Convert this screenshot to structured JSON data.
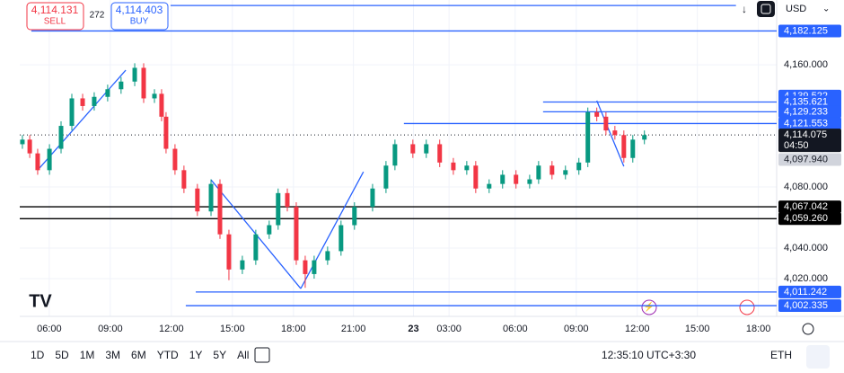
{
  "chart_data": {
    "type": "candlestick",
    "x": [
      0.13,
      0.49,
      0.88,
      1.46,
      2.03,
      2.56,
      3.09,
      3.66,
      4.32,
      4.98,
      5.65,
      6.09,
      6.62,
      6.97,
      7.19,
      7.63,
      8.07,
      8.73,
      9.4,
      9.84,
      10.28,
      10.94,
      11.6,
      12.26,
      12.7,
      13.15,
      13.59,
      14.03,
      14.47,
      15.13,
      15.79,
      16.45,
      17.34,
      18.0,
      18.44,
      19.32,
      19.98,
      20.64,
      21.31,
      21.97,
      22.41,
      23.07,
      23.73,
      24.39,
      25.06,
      25.5,
      26.16,
      26.82,
      27.48,
      27.92,
      28.36,
      28.81,
      29.25,
      29.69,
      30.13,
      30.7
    ],
    "open": [
      4108,
      4111,
      4102,
      4091,
      4105,
      4120,
      4138,
      4133,
      4139,
      4144,
      4149,
      4158,
      4138,
      4141,
      4126,
      4105,
      4091,
      4079,
      4064,
      4082,
      4049,
      4026,
      4032,
      4049,
      4055,
      4076,
      4067,
      4032,
      4023,
      4032,
      4038,
      4055,
      4067,
      4079,
      4094,
      4108,
      4102,
      4108,
      4096,
      4091,
      4094,
      4079,
      4082,
      4088,
      4082,
      4085,
      4094,
      4088,
      4091,
      4096,
      4129,
      4126,
      4117,
      4114,
      4099,
      4111
    ],
    "high": [
      4114,
      4114,
      4105,
      4108,
      4123,
      4141,
      4141,
      4142,
      4147,
      4152,
      4161,
      4161,
      4144,
      4144,
      4129,
      4108,
      4094,
      4082,
      4085,
      4085,
      4052,
      4035,
      4052,
      4058,
      4079,
      4079,
      4070,
      4035,
      4035,
      4041,
      4058,
      4070,
      4082,
      4097,
      4111,
      4111,
      4111,
      4111,
      4099,
      4097,
      4097,
      4085,
      4091,
      4091,
      4088,
      4097,
      4097,
      4094,
      4099,
      4132,
      4132,
      4129,
      4120,
      4117,
      4114,
      4117
    ],
    "low": [
      4105,
      4099,
      4088,
      4088,
      4102,
      4117,
      4130,
      4130,
      4136,
      4141,
      4146,
      4135,
      4135,
      4123,
      4102,
      4088,
      4076,
      4061,
      4061,
      4046,
      4019,
      4023,
      4029,
      4046,
      4052,
      4064,
      4029,
      4014,
      4020,
      4029,
      4035,
      4052,
      4064,
      4076,
      4091,
      4099,
      4099,
      4093,
      4088,
      4088,
      4076,
      4076,
      4079,
      4079,
      4079,
      4082,
      4085,
      4085,
      4088,
      4093,
      4123,
      4114,
      4111,
      4096,
      4096,
      4108
    ],
    "close": [
      4111,
      4102,
      4091,
      4105,
      4120,
      4138,
      4133,
      4139,
      4144,
      4149,
      4158,
      4138,
      4141,
      4126,
      4105,
      4091,
      4079,
      4064,
      4082,
      4049,
      4026,
      4032,
      4049,
      4055,
      4076,
      4067,
      4032,
      4023,
      4032,
      4038,
      4055,
      4067,
      4079,
      4094,
      4108,
      4102,
      4108,
      4096,
      4091,
      4094,
      4079,
      4082,
      4088,
      4082,
      4085,
      4094,
      4088,
      4091,
      4096,
      4129,
      4126,
      4117,
      4114,
      4099,
      4111,
      4114
    ],
    "up_color": "#089981",
    "down_color": "#f23645",
    "xlim": [
      0,
      37.2
    ],
    "xticks": [
      {
        "value": 1.45,
        "label": "06:00"
      },
      {
        "value": 4.45,
        "label": "09:00"
      },
      {
        "value": 7.45,
        "label": "12:00"
      },
      {
        "value": 10.45,
        "label": "15:00"
      },
      {
        "value": 13.45,
        "label": "18:00"
      },
      {
        "value": 16.4,
        "label": "21:00"
      },
      {
        "value": 19.35,
        "label": "23"
      },
      {
        "value": 21.1,
        "label": "03:00"
      },
      {
        "value": 24.35,
        "label": "06:00"
      },
      {
        "value": 27.35,
        "label": "09:00"
      },
      {
        "value": 30.35,
        "label": "12:00"
      },
      {
        "value": 33.3,
        "label": "15:00"
      },
      {
        "value": 36.3,
        "label": "18:00"
      }
    ],
    "ylim": [
      3995.3,
      4202.4
    ],
    "yticks": [
      {
        "value": 4020,
        "label": "4,020.000"
      },
      {
        "value": 4040,
        "label": "4,040.000"
      },
      {
        "value": 4080,
        "label": "4,080.000"
      },
      {
        "value": 4160,
        "label": "4,160.000"
      }
    ],
    "grid": true,
    "levels": [
      {
        "value": 4198.8,
        "color": "#2962ff",
        "start": 7.41,
        "end": 35.2
      },
      {
        "value": 4182.125,
        "label": "4,182.125",
        "color": "#2962ff",
        "start": 0.57
      },
      {
        "value": 4139.522,
        "label": "4,139.522",
        "color": "#2962ff"
      },
      {
        "value": 4135.621,
        "label": "4,135.621",
        "color": "#2962ff",
        "start": 25.72
      },
      {
        "value": 4129.233,
        "label": "4,129.233",
        "color": "#2962ff",
        "start": 25.72
      },
      {
        "value": 4121.553,
        "label": "4,121.553",
        "color": "#2962ff",
        "start": 18.88
      },
      {
        "value": 4097.94,
        "label": "4,097.940",
        "color": "#d1d4dc"
      },
      {
        "value": 4067.042,
        "label": "4,067.042",
        "color": "#000000",
        "start": 0
      },
      {
        "value": 4059.26,
        "label": "4,059.260",
        "color": "#000000",
        "start": 0
      },
      {
        "value": 4011.242,
        "label": "4,011.242",
        "color": "#2962ff",
        "start": 8.65
      },
      {
        "value": 4002.335,
        "label": "4,002.335",
        "color": "#2962ff",
        "start": 8.16
      }
    ],
    "last_price": {
      "value": 4114.075,
      "label": "4,114.075",
      "countdown": "04:50",
      "color": "#131722"
    },
    "trendlines": [
      {
        "x": [
          0.88,
          5.21
        ],
        "y": [
          4091,
          4156.5
        ]
      },
      {
        "x": [
          9.4,
          13.81
        ],
        "y": [
          4084.7,
          4013.5
        ]
      },
      {
        "x": [
          13.81,
          16.89
        ],
        "y": [
          4013.5,
          4089.9
        ]
      },
      {
        "x": [
          28.36,
          29.69
        ],
        "y": [
          4136.5,
          4093.5
        ]
      }
    ],
    "trendline_color": "#2962ff"
  },
  "trade_panel": {
    "sell_price": "4,114.131",
    "sell_label": "SELL",
    "spread": "272",
    "buy_price": "4,114.403",
    "buy_label": "BUY"
  },
  "currency": "USD",
  "periods": [
    "1D",
    "5D",
    "1M",
    "3M",
    "6M",
    "YTD",
    "1Y",
    "5Y",
    "All"
  ],
  "clock": "12:35:10 UTC+3:30",
  "session": "ETH"
}
